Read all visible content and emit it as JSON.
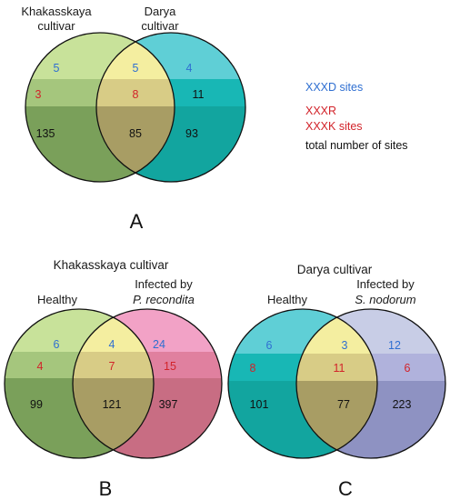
{
  "colors": {
    "xxxd_text": "#2f6fd1",
    "xxxr_text": "#d2232a",
    "total_text": "#111111",
    "khak_band_top": "#c8e29a",
    "khak_band_mid": "#a5c67d",
    "khak_band_bot": "#7aa05a",
    "darya_band_top": "#5fcfd6",
    "darya_band_mid": "#18b7b5",
    "darya_band_bot": "#12a59f",
    "overlap_top": "#f4eea0",
    "overlap_mid": "#d8cc86",
    "overlap_bot": "#a89d64",
    "pr_band_top": "#f2a2c6",
    "pr_band_mid": "#e0809f",
    "pr_band_bot": "#c86d83",
    "sn_band_top": "#c8cde6",
    "sn_band_mid": "#b0b2dc",
    "sn_band_bot": "#8e92c2"
  },
  "legend": {
    "xxxd": "XXXD sites",
    "xxxr": "XXXR",
    "xxxk": "XXXK sites",
    "total": "total number of sites"
  },
  "panel_a": {
    "letter": "A",
    "left_label_line1": "Khakasskaya",
    "left_label_line2": "cultivar",
    "right_label_line1": "Darya",
    "right_label_line2": "cultivar",
    "counts": {
      "left_xxxd": "5",
      "mid_xxxd": "5",
      "right_xxxd": "4",
      "left_xxxr": "3",
      "mid_xxxr": "8",
      "right_xxxr": "11",
      "left_total": "135",
      "mid_total": "85",
      "right_total": "93"
    }
  },
  "panel_b": {
    "letter": "B",
    "title": "Khakasskaya cultivar",
    "left_label": "Healthy",
    "right_label_line1": "Infected by",
    "right_label_line2": "P. recondita",
    "counts": {
      "left_xxxd": "6",
      "mid_xxxd": "4",
      "right_xxxd": "24",
      "left_xxxr": "4",
      "mid_xxxr": "7",
      "right_xxxr": "15",
      "left_total": "99",
      "mid_total": "121",
      "right_total": "397"
    }
  },
  "panel_c": {
    "letter": "C",
    "title": "Darya cultivar",
    "left_label": "Healthy",
    "right_label_line1": "Infected by",
    "right_label_line2": "S. nodorum",
    "counts": {
      "left_xxxd": "6",
      "mid_xxxd": "3",
      "right_xxxd": "12",
      "left_xxxr": "8",
      "mid_xxxr": "11",
      "right_xxxr": "6",
      "left_total": "101",
      "mid_total": "77",
      "right_total": "223"
    }
  }
}
